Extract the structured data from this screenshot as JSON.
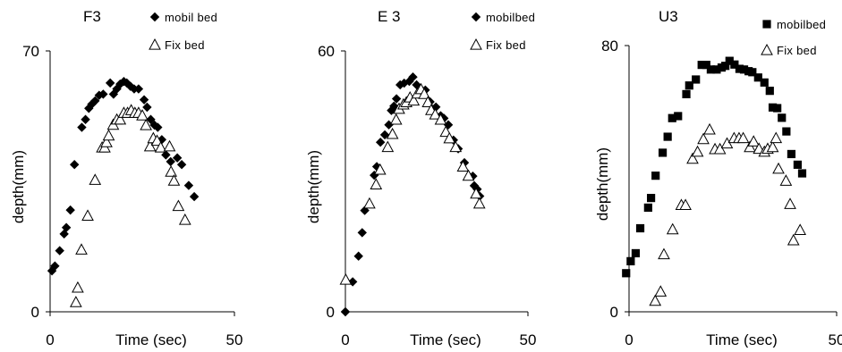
{
  "chart_data": [
    {
      "type": "scatter",
      "title": "F3",
      "xlabel": "Time (sec)",
      "ylabel": "depth(mm)",
      "xlim": [
        0,
        50
      ],
      "ylim": [
        0,
        70
      ],
      "x_ticks": [
        "0",
        "50"
      ],
      "y_ticks": [
        "0",
        "70"
      ],
      "legend_position": "top-right",
      "series": [
        {
          "name": "mobil bed",
          "marker": "diamond",
          "color": "#000000",
          "x": [
            0.5,
            1.3,
            2.6,
            3.8,
            4.4,
            5.5,
            6.6,
            8.6,
            9.6,
            10.5,
            11.3,
            12.2,
            13.3,
            14.4,
            16.3,
            17.2,
            18.1,
            19.0,
            20.0,
            20.8,
            21.8,
            22.8,
            24.0,
            25.5,
            26.3,
            27.3,
            28.3,
            29.2,
            30.3,
            31.4,
            32.7,
            34.5,
            35.7,
            37.6,
            39.1
          ],
          "y": [
            11.0,
            12.3,
            16.4,
            20.9,
            22.6,
            27.3,
            39.5,
            49.5,
            51.6,
            54.6,
            55.7,
            56.6,
            58.1,
            58.4,
            61.4,
            58.4,
            59.8,
            61.1,
            61.8,
            61.4,
            60.5,
            59.8,
            59.8,
            56.9,
            54.9,
            51.6,
            50.1,
            49.5,
            46.2,
            42.1,
            40.3,
            41.3,
            39.5,
            33.9,
            30.9
          ]
        },
        {
          "name": "Fix bed",
          "marker": "triangle-open",
          "color": "#000000",
          "x": [
            7.0,
            7.5,
            8.5,
            10.2,
            12.2,
            14.1,
            14.8,
            15.3,
            15.9,
            17.1,
            18.1,
            19.0,
            20.0,
            21.0,
            22.0,
            23.0,
            24.0,
            25.0,
            26.0,
            27.1,
            28.0,
            29.0,
            30.0,
            32.4,
            32.8,
            33.6,
            34.8,
            36.6
          ],
          "y": [
            2.6,
            6.5,
            16.7,
            25.8,
            35.4,
            44.1,
            44.1,
            45.5,
            47.3,
            50.2,
            51.6,
            51.6,
            53.4,
            53.4,
            54.1,
            53.4,
            53.4,
            52.7,
            50.1,
            44.4,
            46.6,
            45.9,
            44.1,
            44.4,
            37.6,
            35.2,
            28.4,
            24.7
          ]
        }
      ]
    },
    {
      "type": "scatter",
      "title": "E 3",
      "xlabel": "Time (sec)",
      "ylabel": "depth(mm)",
      "xlim": [
        0,
        50
      ],
      "ylim": [
        0,
        60
      ],
      "x_ticks": [
        "0",
        "50"
      ],
      "y_ticks": [
        "0",
        "60"
      ],
      "legend_position": "top-right",
      "series": [
        {
          "name": "mobilbed",
          "marker": "diamond",
          "color": "#000000",
          "x": [
            0.0,
            2.0,
            3.6,
            4.6,
            5.3,
            7.9,
            8.6,
            9.6,
            10.8,
            11.9,
            12.6,
            13.3,
            14.0,
            15.0,
            16.1,
            17.5,
            18.5,
            19.5,
            20.8,
            21.9,
            23.2,
            24.8,
            26.1,
            27.0,
            28.2,
            29.6,
            30.9,
            32.6,
            34.9,
            35.3,
            36.1,
            36.8
          ],
          "y": [
            0.0,
            6.9,
            12.8,
            18.2,
            23.3,
            31.4,
            33.4,
            39.0,
            40.7,
            43.0,
            46.3,
            47.3,
            49.0,
            52.2,
            52.6,
            53.0,
            54.0,
            52.2,
            50.1,
            51.0,
            48.3,
            47.1,
            45.1,
            44.5,
            43.0,
            39.5,
            37.5,
            34.3,
            31.2,
            29.0,
            28.2,
            26.6
          ]
        },
        {
          "name": "Fix bed",
          "marker": "triangle-open",
          "color": "#000000",
          "x": [
            0.1,
            6.6,
            8.4,
            9.5,
            11.6,
            12.9,
            13.9,
            14.7,
            15.9,
            16.7,
            17.7,
            18.7,
            19.7,
            20.7,
            21.6,
            22.6,
            23.5,
            24.6,
            26.1,
            27.5,
            28.5,
            30.2,
            32.2,
            33.7,
            35.8,
            36.7
          ],
          "y": [
            7.4,
            24.9,
            29.3,
            32.7,
            37.9,
            40.9,
            44.2,
            46.7,
            47.7,
            48.2,
            49.3,
            48.6,
            50.2,
            51.2,
            50.1,
            48.2,
            46.4,
            45.4,
            44.2,
            41.4,
            39.9,
            37.9,
            33.4,
            31.3,
            27.2,
            24.9
          ]
        }
      ]
    },
    {
      "type": "scatter",
      "title": "U3",
      "xlabel": "Time (sec)",
      "ylabel": "depth(mm)",
      "xlim": [
        0,
        50
      ],
      "ylim": [
        0,
        80
      ],
      "x_ticks": [
        "0",
        "50"
      ],
      "y_ticks": [
        "0",
        "80"
      ],
      "legend_position": "top-right",
      "series": [
        {
          "name": "mobilbed",
          "marker": "square",
          "color": "#000000",
          "x": [
            -0.7,
            0.4,
            1.6,
            2.7,
            4.6,
            5.3,
            6.4,
            8.1,
            9.3,
            10.4,
            11.8,
            13.8,
            14.5,
            16.1,
            17.5,
            18.6,
            19.7,
            21.1,
            22.3,
            23.2,
            24.2,
            25.4,
            26.6,
            27.7,
            28.8,
            29.7,
            31.1,
            32.6,
            33.9,
            34.6,
            35.7,
            36.8,
            37.9,
            39.1,
            40.6,
            41.7
          ],
          "y": [
            11.6,
            15.2,
            17.6,
            25.1,
            31.3,
            34.2,
            40.9,
            47.8,
            52.6,
            58.2,
            58.8,
            65.4,
            68.0,
            69.8,
            74.2,
            74.2,
            72.8,
            72.8,
            73.4,
            73.9,
            75.4,
            74.3,
            73.0,
            72.8,
            72.3,
            72.0,
            70.4,
            68.9,
            66.4,
            61.4,
            61.2,
            58.3,
            54.2,
            47.4,
            44.2,
            41.6
          ]
        },
        {
          "name": "Fix bed",
          "marker": "triangle-open",
          "color": "#000000",
          "x": [
            6.3,
            7.6,
            8.4,
            10.5,
            12.6,
            13.6,
            15.3,
            16.5,
            17.9,
            19.4,
            20.7,
            21.9,
            23.6,
            25.3,
            26.5,
            27.5,
            29.1,
            30.0,
            31.3,
            32.6,
            33.4,
            34.6,
            35.4,
            36.0,
            37.8,
            38.8,
            39.6,
            41.2
          ],
          "y": [
            3.3,
            6.1,
            17.3,
            24.8,
            32.1,
            32.1,
            46.0,
            48.1,
            51.9,
            54.8,
            48.9,
            48.9,
            50.6,
            52.2,
            52.2,
            52.2,
            49.5,
            51.2,
            49.0,
            48.1,
            49.0,
            49.5,
            52.2,
            43.0,
            39.4,
            32.4,
            21.5,
            24.6
          ]
        }
      ]
    }
  ]
}
